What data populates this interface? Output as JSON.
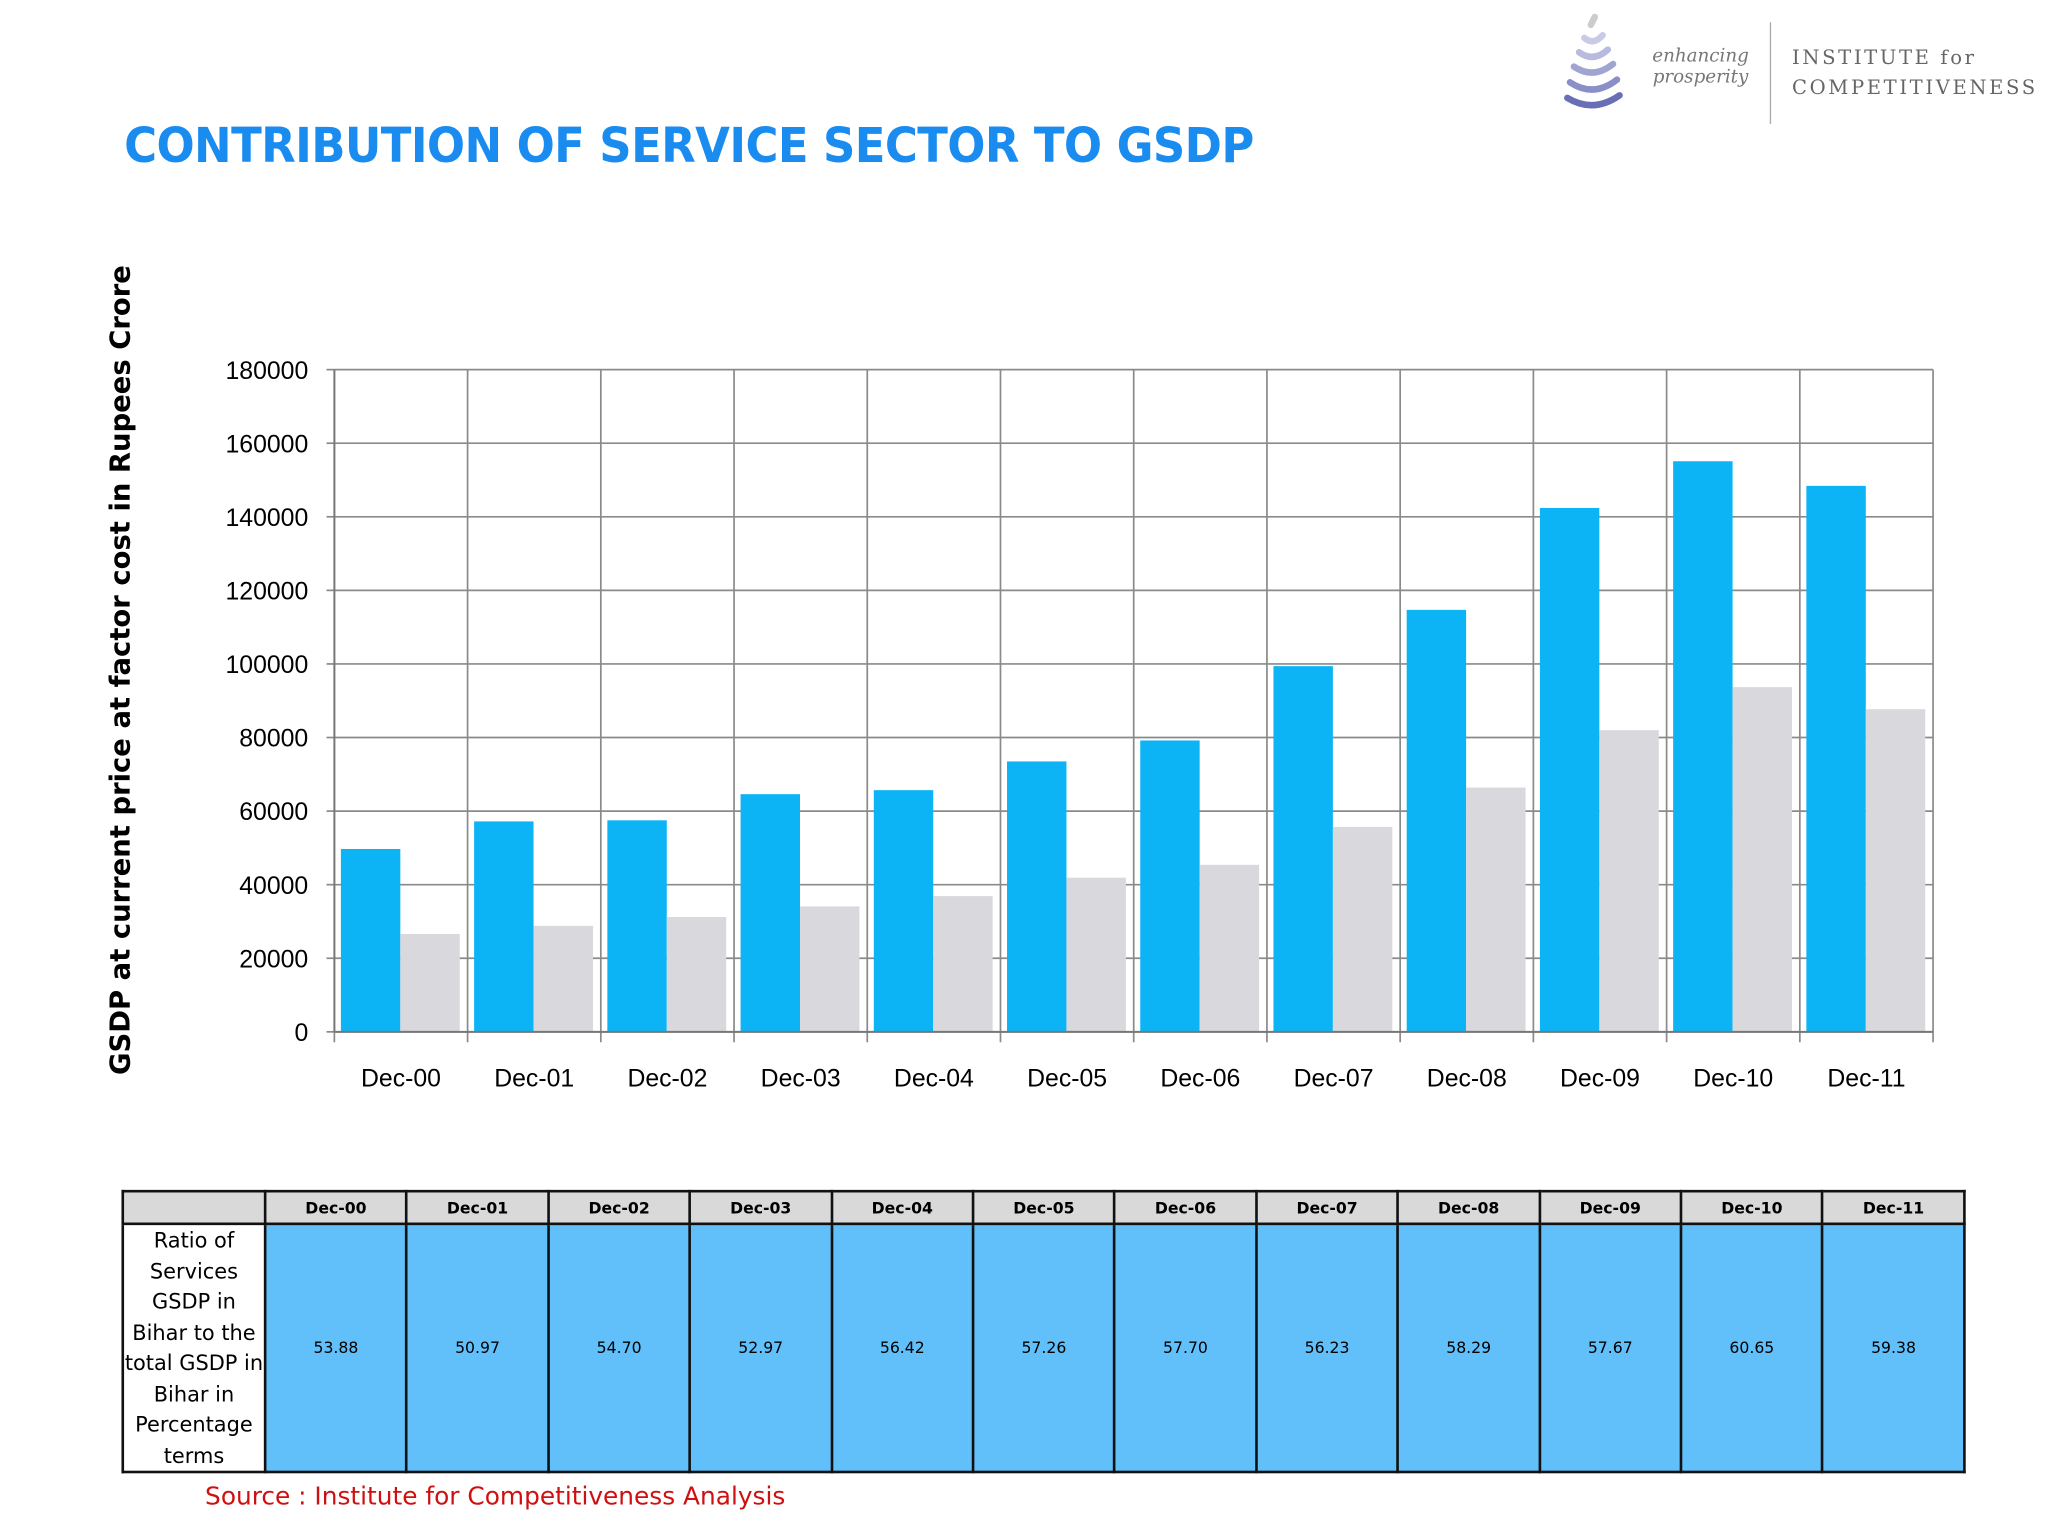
{
  "title": "CONTRIBUTION OF SERVICE  SECTOR TO GSDP",
  "logo": {
    "tagline_1": "enhancing",
    "tagline_2": "prosperity",
    "name_1": "INSTITUTE for",
    "name_2": "COMPETITIVENESS"
  },
  "chart_data": {
    "type": "bar",
    "ylabel": "GSDP at current price at factor cost in Rupees Crore",
    "xlabel": "",
    "ylim": [
      0,
      180000
    ],
    "yticks": [
      0,
      20000,
      40000,
      60000,
      80000,
      100000,
      120000,
      140000,
      160000,
      180000
    ],
    "grid": true,
    "categories": [
      "Dec-00",
      "Dec-01",
      "Dec-02",
      "Dec-03",
      "Dec-04",
      "Dec-05",
      "Dec-06",
      "Dec-07",
      "Dec-08",
      "Dec-09",
      "Dec-10",
      "Dec-11"
    ],
    "series": [
      {
        "color": "#0db4f5",
        "values": [
          49700,
          57200,
          57500,
          64600,
          65700,
          73500,
          79200,
          99400,
          114700,
          142400,
          155100,
          148400
        ]
      },
      {
        "color": "#d9d8dc",
        "values": [
          26600,
          28800,
          31200,
          34100,
          36900,
          41900,
          45400,
          55700,
          66400,
          82000,
          93700,
          87700
        ]
      }
    ]
  },
  "table": {
    "row_label": [
      "Ratio of",
      "Services",
      "GSDP  in",
      "Bihar to the",
      "total GSDP in",
      "Bihar in",
      "Percentage",
      "terms"
    ],
    "headers": [
      "Dec-00",
      "Dec-01",
      "Dec-02",
      "Dec-03",
      "Dec-04",
      "Dec-05",
      "Dec-06",
      "Dec-07",
      "Dec-08",
      "Dec-09",
      "Dec-10",
      "Dec-11"
    ],
    "values": [
      "53.88",
      "50.97",
      "54.70",
      "52.97",
      "56.42",
      "57.26",
      "57.70",
      "56.23",
      "58.29",
      "57.67",
      "60.65",
      "59.38"
    ]
  },
  "source": "Source : Institute for Competitiveness Analysis"
}
